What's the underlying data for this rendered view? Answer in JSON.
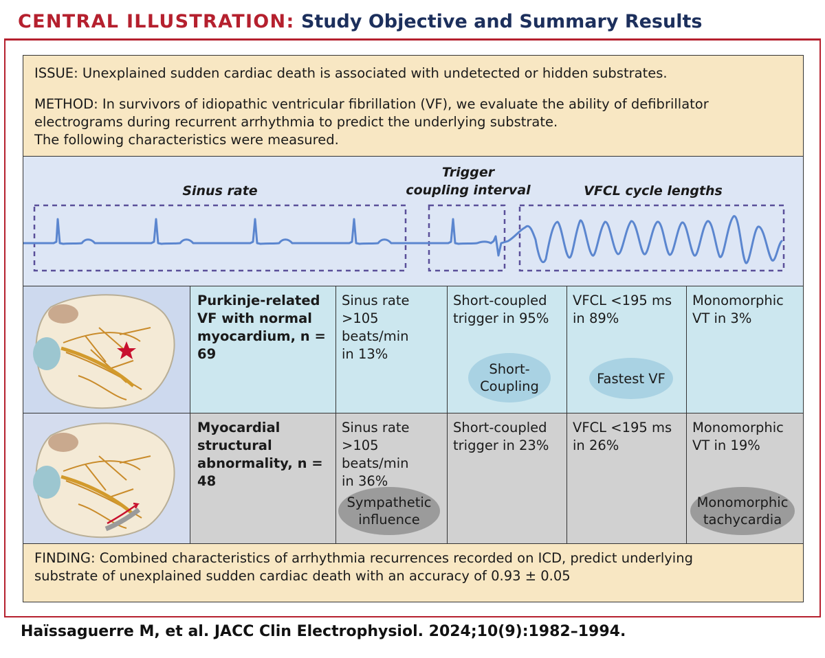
{
  "header": {
    "label": "CENTRAL ILLUSTRATION:",
    "title": "Study Objective and Summary Results"
  },
  "issue": "ISSUE: Unexplained sudden cardiac death is associated with undetected or hidden substrates.",
  "method": {
    "line1": "METHOD: In survivors of idiopathic ventricular fibrillation (VF), we evaluate the ability of defibrillator",
    "line2": "electrograms during recurrent arrhythmia to predict the underlying substrate.",
    "line3": "The following characteristics were measured."
  },
  "trace_labels": {
    "sinus": "Sinus rate",
    "trigger_1": "Trigger",
    "trigger_2": "coupling interval",
    "vfcl": "VFCL cycle lengths"
  },
  "rows": [
    {
      "group_1": "Purkinje-related",
      "group_2": "VF with normal",
      "group_3": "myocardium, n = 69",
      "sinus_1": "Sinus rate",
      "sinus_2": ">105 beats/min",
      "sinus_3": "in 13%",
      "trigger_1": "Short-coupled",
      "trigger_2": "trigger in 95%",
      "vfcl_1": "VFCL <195 ms",
      "vfcl_2": "in 89%",
      "vt_1": "Monomorphic",
      "vt_2": "VT in 3%",
      "bubble_trigger_1": "Short-",
      "bubble_trigger_2": "Coupling",
      "bubble_vfcl": "Fastest VF"
    },
    {
      "group_1": "Myocardial",
      "group_2": "structural",
      "group_3": "abnormality, n = 48",
      "sinus_1": "Sinus rate",
      "sinus_2": ">105 beats/min",
      "sinus_3": "in 36%",
      "trigger_1": "Short-coupled",
      "trigger_2": "trigger in 23%",
      "vfcl_1": "VFCL <195 ms",
      "vfcl_2": "in 26%",
      "vt_1": "Monomorphic",
      "vt_2": "VT in 19%",
      "bubble_sinus_1": "Sympathetic",
      "bubble_sinus_2": "influence",
      "bubble_vt_1": "Monomorphic",
      "bubble_vt_2": "tachycardia"
    }
  ],
  "finding": {
    "line1": "FINDING: Combined characteristics of arrhythmia recurrences recorded on ICD, predict underlying",
    "line2": "substrate of unexplained sudden cardiac death with an accuracy of 0.93 ± 0.05"
  },
  "citation": "Haïssaguerre M, et al. JACC Clin Electrophysiol. 2024;10(9):1982–1994.",
  "colors": {
    "accent_red": "#b5202e",
    "title_navy": "#1c2f5c",
    "panel_beige": "#f8e7c3",
    "trace_blue": "#5b86cf",
    "row1_bg": "#cce7ef",
    "row2_bg": "#d1d1d1"
  }
}
